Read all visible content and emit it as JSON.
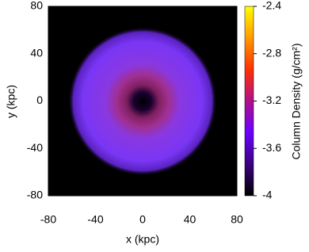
{
  "chart_data": {
    "type": "heatmap",
    "xlabel": "x (kpc)",
    "ylabel": "y (kpc)",
    "colorbar_label": "Column Density (g/cm²)",
    "xlim": [
      -80,
      80
    ],
    "xticks": [
      -80,
      -40,
      0,
      40,
      80
    ],
    "ylim": [
      -80,
      80
    ],
    "yticks": [
      -80,
      -40,
      0,
      40,
      80
    ],
    "clim": [
      -4,
      -2.4
    ],
    "cticks": [
      -4,
      -3.6,
      -3.2,
      -2.8,
      -2.4
    ],
    "colormap": [
      "#000000",
      "#3a0080",
      "#6a00ff",
      "#b0108a",
      "#ff3000",
      "#ff9a00",
      "#ffff00"
    ]
  }
}
